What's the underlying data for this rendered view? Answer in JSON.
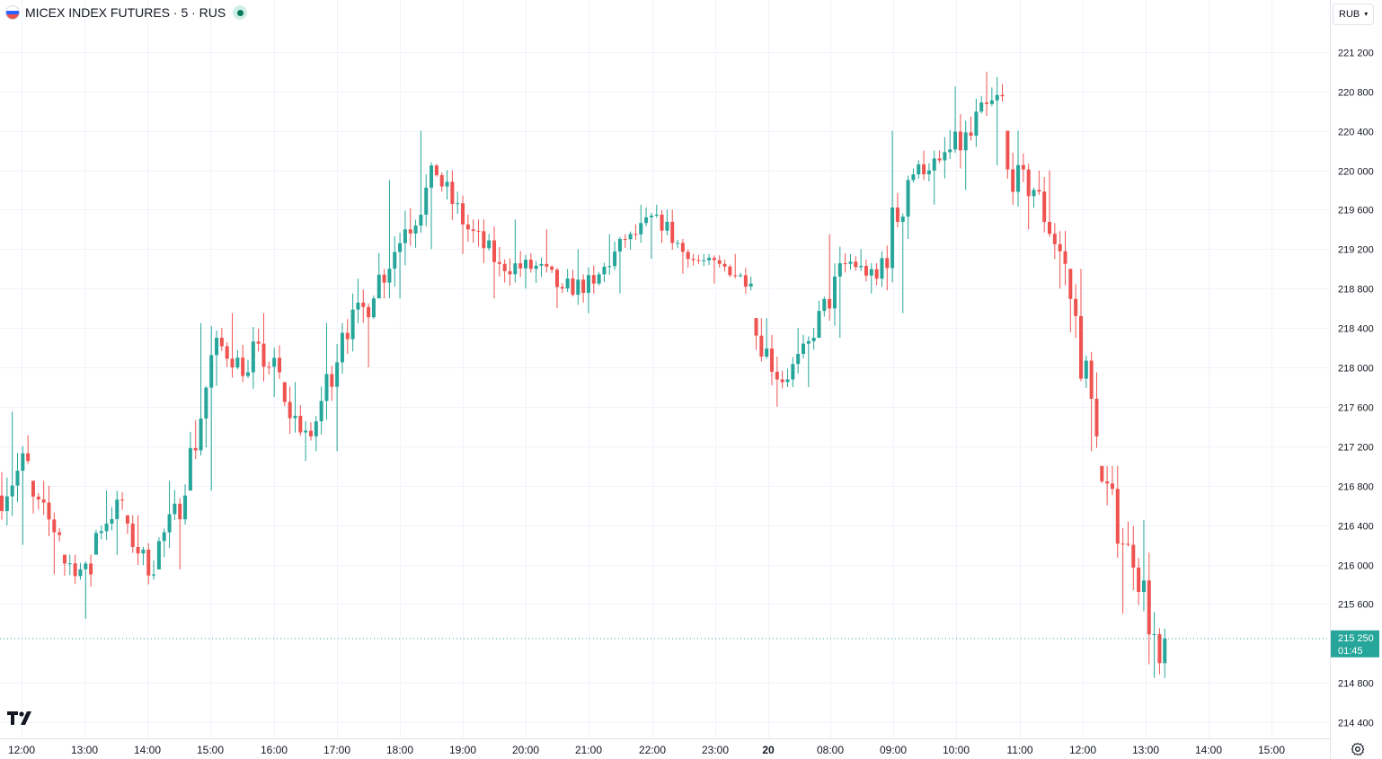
{
  "symbol": {
    "name": "MICEX INDEX FUTURES",
    "interval": "5",
    "exchange": "RUS",
    "title": "MICEX INDEX FUTURES · 5 · RUS",
    "flag_icon": "russia-flag-icon",
    "status_icon": "market-open-dot-icon"
  },
  "currency": {
    "label": "RUB",
    "icon": "chevron-down-icon"
  },
  "last_price": {
    "label": "215 250",
    "countdown": "01:45",
    "value": 215250
  },
  "colors": {
    "up": "#26a69a",
    "down": "#ef5350",
    "grid": "#f0f3fa",
    "text": "#131722",
    "last_price_badge": "#26a69a"
  },
  "chart_data": {
    "type": "candlestick",
    "interval_minutes": 5,
    "x_tick_labels": [
      "12:00",
      "13:00",
      "14:00",
      "15:00",
      "16:00",
      "17:00",
      "18:00",
      "19:00",
      "20:00",
      "21:00",
      "22:00",
      "23:00",
      "20",
      "08:00",
      "09:00",
      "10:00",
      "11:00",
      "12:00",
      "13:00",
      "14:00",
      "15:00"
    ],
    "y_tick_labels": [
      "221 200",
      "220 800",
      "220 400",
      "220 000",
      "219 600",
      "219 200",
      "218 800",
      "218 400",
      "218 000",
      "217 600",
      "217 200",
      "216 800",
      "216 400",
      "216 000",
      "215 600",
      "214 800",
      "214 400"
    ],
    "y_ticks": [
      221200,
      220800,
      220400,
      220000,
      219600,
      219200,
      218800,
      218400,
      218000,
      217600,
      217200,
      216800,
      216400,
      216000,
      215600,
      214800,
      214400
    ],
    "ylim": [
      214250,
      221600
    ],
    "grid": true,
    "candle_summary": [
      {
        "time": "12:00",
        "open": 216700,
        "high": 217550,
        "low": 216200,
        "close": 217050
      },
      {
        "time": "12:30",
        "open": 216700,
        "high": 216850,
        "low": 215900,
        "close": 216300
      },
      {
        "time": "13:00",
        "open": 216050,
        "high": 216100,
        "low": 215450,
        "close": 215900
      },
      {
        "time": "13:30",
        "open": 216250,
        "high": 216750,
        "low": 216100,
        "close": 216650
      },
      {
        "time": "14:00",
        "open": 216400,
        "high": 216500,
        "low": 215800,
        "close": 215900
      },
      {
        "time": "14:30",
        "open": 216100,
        "high": 216850,
        "low": 215950,
        "close": 216700
      },
      {
        "time": "15:00",
        "open": 216800,
        "high": 218450,
        "low": 216750,
        "close": 218300
      },
      {
        "time": "15:30",
        "open": 218250,
        "high": 218550,
        "low": 217850,
        "close": 217950
      },
      {
        "time": "16:00",
        "open": 218200,
        "high": 218550,
        "low": 217700,
        "close": 217950
      },
      {
        "time": "16:30",
        "open": 217650,
        "high": 217850,
        "low": 217050,
        "close": 217300
      },
      {
        "time": "17:00",
        "open": 217300,
        "high": 218450,
        "low": 217150,
        "close": 218350
      },
      {
        "time": "17:30",
        "open": 218350,
        "high": 218900,
        "low": 218000,
        "close": 218700
      },
      {
        "time": "18:00",
        "open": 218800,
        "high": 219900,
        "low": 218700,
        "close": 219400
      },
      {
        "time": "18:30",
        "open": 219400,
        "high": 220400,
        "low": 219200,
        "close": 219950
      },
      {
        "time": "19:00",
        "open": 219950,
        "high": 220000,
        "low": 219150,
        "close": 219400
      },
      {
        "time": "19:30",
        "open": 219400,
        "high": 219500,
        "low": 218700,
        "close": 219050
      },
      {
        "time": "20:00",
        "open": 219050,
        "high": 219500,
        "low": 218800,
        "close": 219000
      },
      {
        "time": "20:30",
        "open": 219050,
        "high": 219400,
        "low": 218600,
        "close": 218800
      },
      {
        "time": "21:00",
        "open": 218800,
        "high": 219200,
        "low": 218550,
        "close": 218850
      },
      {
        "time": "21:30",
        "open": 218850,
        "high": 219350,
        "low": 218750,
        "close": 219300
      },
      {
        "time": "22:00",
        "open": 219250,
        "high": 219650,
        "low": 219100,
        "close": 219550
      },
      {
        "time": "22:30",
        "open": 219550,
        "high": 219600,
        "low": 218950,
        "close": 219100
      },
      {
        "time": "23:00",
        "open": 219100,
        "high": 219150,
        "low": 218850,
        "close": 219050
      },
      {
        "time": "23:30",
        "open": 219050,
        "high": 219150,
        "low": 218750,
        "close": 218850
      },
      {
        "time": "08:00",
        "open": 218450,
        "high": 218500,
        "low": 217600,
        "close": 217850
      },
      {
        "time": "08:30",
        "open": 217850,
        "high": 218400,
        "low": 217800,
        "close": 218300
      },
      {
        "time": "09:00",
        "open": 218350,
        "high": 219350,
        "low": 218300,
        "close": 219050
      },
      {
        "time": "09:30",
        "open": 219100,
        "high": 219200,
        "low": 218750,
        "close": 218900
      },
      {
        "time": "10:00",
        "open": 218900,
        "high": 220400,
        "low": 218550,
        "close": 219900
      },
      {
        "time": "10:30",
        "open": 219950,
        "high": 220200,
        "low": 219650,
        "close": 220100
      },
      {
        "time": "11:00",
        "open": 220100,
        "high": 220850,
        "low": 219800,
        "close": 220350
      },
      {
        "time": "11:30",
        "open": 220450,
        "high": 221000,
        "low": 220050,
        "close": 220750
      },
      {
        "time": "12:00",
        "open": 220000,
        "high": 220400,
        "low": 219400,
        "close": 219800
      },
      {
        "time": "12:30",
        "open": 219800,
        "high": 220000,
        "low": 218800,
        "close": 219050
      },
      {
        "time": "13:00",
        "open": 219000,
        "high": 219000,
        "low": 217150,
        "close": 217300
      },
      {
        "time": "13:30",
        "open": 216900,
        "high": 217000,
        "low": 215500,
        "close": 216200
      },
      {
        "time": "14:00",
        "open": 216400,
        "high": 216450,
        "low": 214850,
        "close": 215000
      },
      {
        "time": "14:05",
        "open": 215000,
        "high": 215350,
        "low": 214850,
        "close": 215250
      }
    ]
  }
}
